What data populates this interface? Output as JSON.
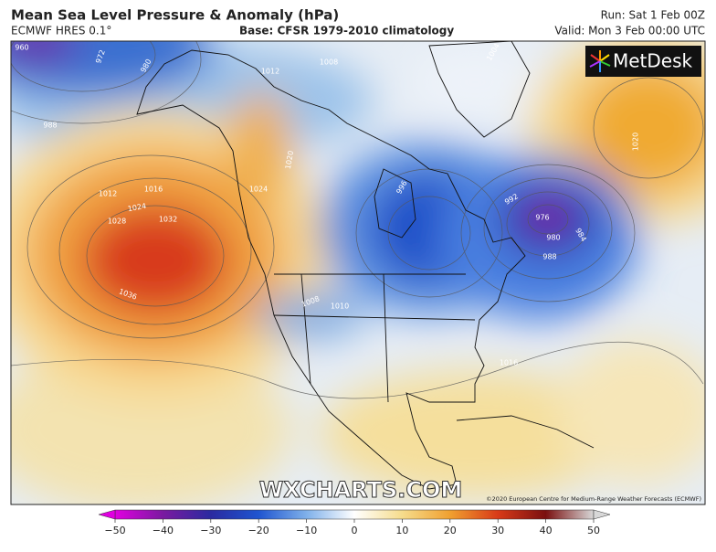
{
  "header": {
    "title": "Mean Sea Level Pressure & Anomaly (hPa)",
    "model": "ECMWF HRES 0.1°",
    "base": "Base: CFSR 1979-2010 climatology",
    "run": "Run: Sat 1 Feb 00Z",
    "valid": "Valid: Mon 3 Feb 00:00 UTC"
  },
  "logo": "MetDesk",
  "watermark": "WXCHARTS.COM",
  "copyright": "©2020 European Centre for Medium-Range Weather Forecasts (ECMWF)",
  "isobar_labels": [
    "960",
    "972",
    "980",
    "988",
    "1012",
    "1008",
    "1004",
    "1016",
    "1012",
    "1024",
    "1028",
    "1032",
    "1036",
    "996",
    "992",
    "976",
    "980",
    "984",
    "988",
    "1016",
    "1020",
    "1024",
    "1020",
    "1008",
    "1010"
  ],
  "colorbar": {
    "lim": [
      -50,
      50
    ],
    "ticks": [
      {
        "value": -50,
        "label": "−50"
      },
      {
        "value": -40,
        "label": "−40"
      },
      {
        "value": -30,
        "label": "−30"
      },
      {
        "value": -20,
        "label": "−20"
      },
      {
        "value": -10,
        "label": "−10"
      },
      0,
      10,
      20,
      30,
      40,
      50
    ]
  }
}
